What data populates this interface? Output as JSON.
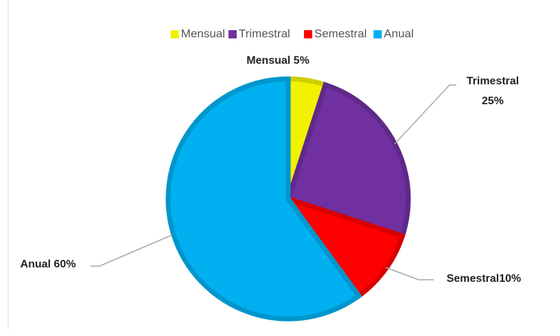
{
  "chart_data": {
    "type": "pie",
    "categories": [
      "Mensual",
      "Trimestral",
      "Semestral",
      "Anual"
    ],
    "values": [
      5,
      25,
      10,
      60
    ],
    "value_labels": [
      "Mensual 5%",
      "Trimestral 25%",
      "Semestral10%",
      "Anual 60%"
    ],
    "colors": [
      "#f2f200",
      "#7030a0",
      "#ff0000",
      "#00b0f0"
    ],
    "legend": "top"
  }
}
